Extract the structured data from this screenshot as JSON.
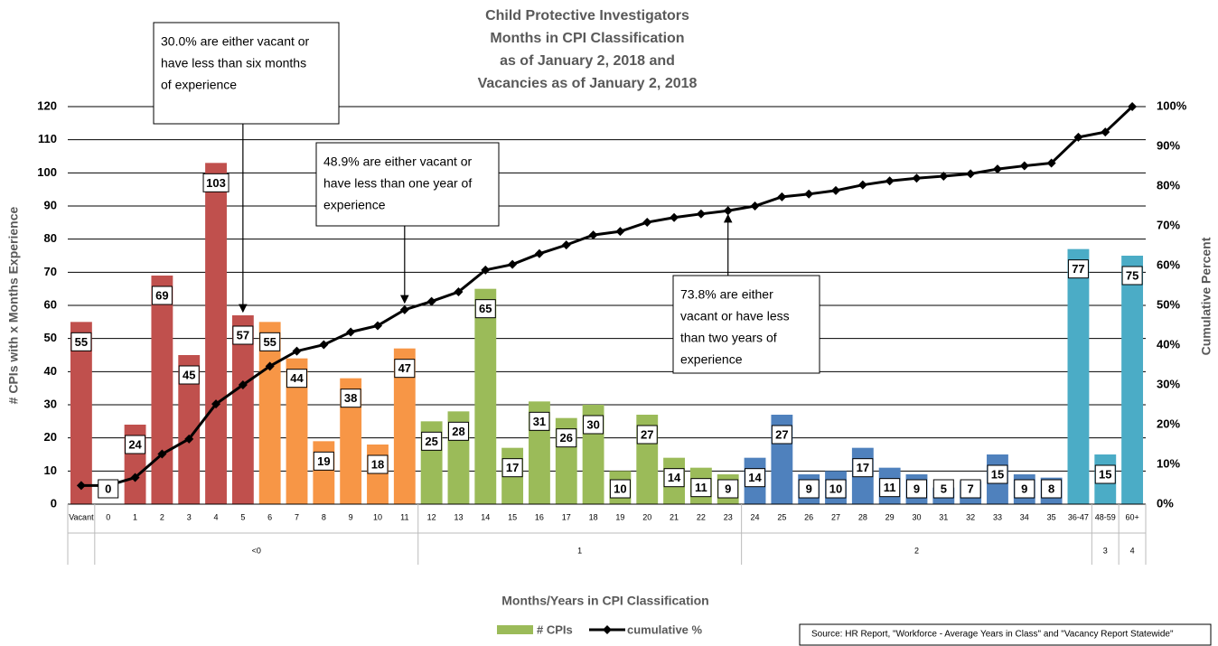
{
  "chart_data": {
    "type": "bar_line",
    "title": [
      "Child Protective Investigators",
      "Months in CPI Classification",
      "as of January 2, 2018 and",
      "Vacancies as of January 2, 2018"
    ],
    "y_label": "# CPIs with x Months Experience",
    "y2_label": "Cumulative Percent",
    "x_label": "Months/Years in CPI Classification",
    "source": "Source: HR Report, \"Workforce - Average Years in Class\" and \"Vacancy Report Statewide\"",
    "categories": [
      "Vacant",
      "0",
      "1",
      "2",
      "3",
      "4",
      "5",
      "6",
      "7",
      "8",
      "9",
      "10",
      "11",
      "12",
      "13",
      "14",
      "15",
      "16",
      "17",
      "18",
      "19",
      "20",
      "21",
      "22",
      "23",
      "24",
      "25",
      "26",
      "27",
      "28",
      "29",
      "30",
      "31",
      "32",
      "33",
      "34",
      "35",
      "36-47",
      "48-59",
      "60+"
    ],
    "groups": [
      {
        "label": null,
        "span": 1
      },
      {
        "label": "<0",
        "span": 12
      },
      {
        "label": "1",
        "span": 12
      },
      {
        "label": "2",
        "span": 13
      },
      {
        "label": "3",
        "span": 1
      },
      {
        "label": "4",
        "span": 1
      }
    ],
    "series": [
      {
        "name": "# CPIs",
        "color": "#9bbb59",
        "colors": [
          "#c0504d",
          "#c0504d",
          "#c0504d",
          "#c0504d",
          "#c0504d",
          "#c0504d",
          "#c0504d",
          "#f79646",
          "#f79646",
          "#f79646",
          "#f79646",
          "#f79646",
          "#f79646",
          "#9bbb59",
          "#9bbb59",
          "#9bbb59",
          "#9bbb59",
          "#9bbb59",
          "#9bbb59",
          "#9bbb59",
          "#9bbb59",
          "#9bbb59",
          "#9bbb59",
          "#9bbb59",
          "#9bbb59",
          "#4f81bd",
          "#4f81bd",
          "#4f81bd",
          "#4f81bd",
          "#4f81bd",
          "#4f81bd",
          "#4f81bd",
          "#4f81bd",
          "#4f81bd",
          "#4f81bd",
          "#4f81bd",
          "#4f81bd",
          "#4bacc6",
          "#4bacc6",
          "#4bacc6"
        ],
        "values": [
          55,
          0,
          24,
          69,
          45,
          103,
          57,
          55,
          44,
          19,
          38,
          18,
          47,
          25,
          28,
          65,
          17,
          31,
          26,
          30,
          10,
          27,
          14,
          11,
          9,
          14,
          27,
          9,
          10,
          17,
          11,
          9,
          5,
          7,
          15,
          9,
          8,
          77,
          15,
          75
        ]
      },
      {
        "name": "cumulative %",
        "color": "#000000",
        "axis": "y2",
        "values": [
          4.7,
          4.7,
          6.7,
          12.6,
          16.4,
          25.2,
          30.0,
          34.7,
          38.5,
          40.1,
          43.3,
          44.9,
          48.9,
          51.0,
          53.4,
          58.9,
          60.3,
          63.0,
          65.2,
          67.7,
          68.6,
          70.9,
          72.1,
          73.0,
          73.8,
          75.0,
          77.3,
          78.0,
          78.9,
          80.3,
          81.3,
          82.0,
          82.5,
          83.1,
          84.3,
          85.1,
          85.8,
          92.3,
          93.6,
          100.0
        ]
      }
    ],
    "ylim": [
      0,
      120
    ],
    "yticks": [
      0,
      10,
      20,
      30,
      40,
      50,
      60,
      70,
      80,
      90,
      100,
      110,
      120
    ],
    "y2lim": [
      0,
      100
    ],
    "y2ticks": [
      {
        "value": 0,
        "label": "0%"
      },
      {
        "value": 10,
        "label": "10%"
      },
      {
        "value": 20,
        "label": "20%"
      },
      {
        "value": 30,
        "label": "30%"
      },
      {
        "value": 40,
        "label": "40%"
      },
      {
        "value": 50,
        "label": "50%"
      },
      {
        "value": 60,
        "label": "60%"
      },
      {
        "value": 70,
        "label": "70%"
      },
      {
        "value": 80,
        "label": "80%"
      },
      {
        "value": 90,
        "label": "90%"
      },
      {
        "value": 100,
        "label": "100%"
      }
    ],
    "grid": true,
    "annotations": [
      {
        "lines": [
          "30.0% are either vacant or",
          "have less than six months",
          "of experience"
        ]
      },
      {
        "lines": [
          "48.9% are either vacant or",
          "have less than one year of",
          "experience"
        ]
      },
      {
        "lines": [
          "73.8% are either",
          "vacant or have less",
          "than two years of",
          "experience"
        ]
      }
    ]
  }
}
